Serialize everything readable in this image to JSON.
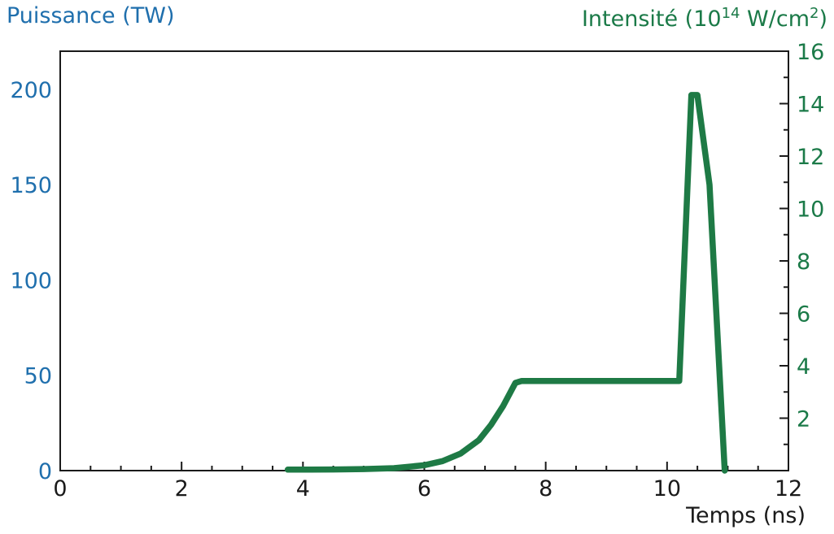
{
  "chart_data": {
    "type": "line",
    "xlabel": "Temps (ns)",
    "ylabel_left": "Puissance (TW)",
    "ylabel_right": {
      "prefix": "Intensité (10",
      "exponent": "14",
      "middle": " W/cm",
      "unit_exponent": "2",
      "suffix": ")"
    },
    "xlim": [
      0,
      12
    ],
    "ylim_left": [
      0,
      220
    ],
    "ylim_right": [
      0,
      16
    ],
    "x_ticks": [
      "0",
      "2",
      "4",
      "6",
      "8",
      "10",
      "12"
    ],
    "y_ticks_left": [
      "0",
      "50",
      "100",
      "150",
      "200"
    ],
    "y_ticks_right": [
      "2",
      "4",
      "6",
      "8",
      "10",
      "12",
      "14",
      "16"
    ],
    "grid": false,
    "colors": {
      "left_axis": "#1f6fad",
      "right_axis": "#1b7a48",
      "series": "#1e7a45",
      "frame": "#1a1a1a"
    },
    "series": [
      {
        "axis": "left",
        "x": [
          3.75,
          4.5,
          5.0,
          5.5,
          6.0,
          6.3,
          6.6,
          6.9,
          7.1,
          7.3,
          7.5,
          7.6,
          10.2,
          10.4,
          10.5,
          10.7,
          10.95
        ],
        "y": [
          0.5,
          0.6,
          0.8,
          1.3,
          2.8,
          5.0,
          9.0,
          16.0,
          24.0,
          34.0,
          46.0,
          47.0,
          47.0,
          197.0,
          197.0,
          150.0,
          0.0
        ]
      }
    ]
  }
}
